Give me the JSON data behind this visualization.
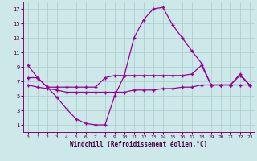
{
  "background_color": "#cce8e8",
  "grid_color": "#aacccc",
  "line_color": "#990099",
  "xlabel": "Windchill (Refroidissement éolien,°C)",
  "xlim_min": -0.5,
  "xlim_max": 23.5,
  "ylim_min": 0,
  "ylim_max": 18,
  "xticks": [
    0,
    1,
    2,
    3,
    4,
    5,
    6,
    7,
    8,
    9,
    10,
    11,
    12,
    13,
    14,
    15,
    16,
    17,
    18,
    19,
    20,
    21,
    22,
    23
  ],
  "yticks": [
    1,
    3,
    5,
    7,
    9,
    11,
    13,
    15,
    17
  ],
  "x": [
    0,
    1,
    2,
    3,
    4,
    5,
    6,
    7,
    8,
    9,
    10,
    11,
    12,
    13,
    14,
    15,
    16,
    17,
    18,
    19,
    20,
    21,
    22,
    23
  ],
  "line1": [
    9.2,
    7.5,
    6.2,
    4.8,
    3.2,
    1.8,
    1.2,
    1.0,
    1.0,
    5.0,
    7.8,
    13.0,
    15.5,
    17.0,
    17.2,
    14.8,
    13.0,
    11.2,
    9.5,
    6.5,
    6.5,
    6.5,
    8.0,
    6.5
  ],
  "line2": [
    7.5,
    7.5,
    6.2,
    6.2,
    6.2,
    6.2,
    6.2,
    6.2,
    7.5,
    7.8,
    7.8,
    7.8,
    7.8,
    7.8,
    7.8,
    7.8,
    7.8,
    8.0,
    9.2,
    6.5,
    6.5,
    6.5,
    7.8,
    6.5
  ],
  "line3": [
    6.5,
    6.2,
    6.0,
    5.8,
    5.5,
    5.5,
    5.5,
    5.5,
    5.5,
    5.5,
    5.5,
    5.8,
    5.8,
    5.8,
    6.0,
    6.0,
    6.2,
    6.2,
    6.5,
    6.5,
    6.5,
    6.5,
    6.5,
    6.5
  ]
}
